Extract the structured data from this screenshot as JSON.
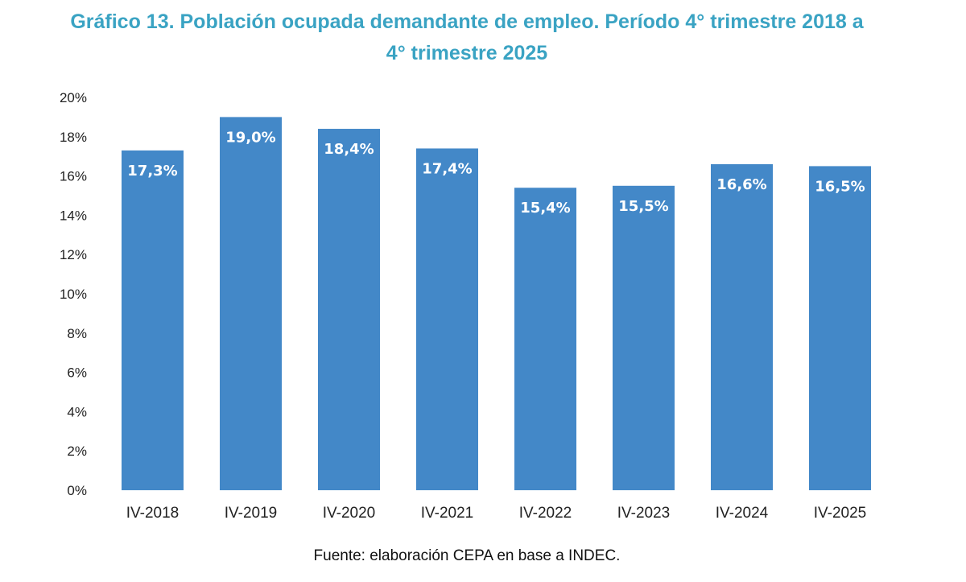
{
  "chart_data": {
    "type": "bar",
    "title": "Gráfico 13. Población ocupada demandante de empleo. Período 4° trimestre 2018 a 4° trimestre 2025",
    "title_lines": [
      "Gráfico 13. Población ocupada demandante de empleo. Período 4° trimestre 2018 a",
      "4° trimestre 2025"
    ],
    "categories": [
      "IV-2018",
      "IV-2019",
      "IV-2020",
      "IV-2021",
      "IV-2022",
      "IV-2023",
      "IV-2024",
      "IV-2025"
    ],
    "values": [
      17.3,
      19.0,
      18.4,
      17.4,
      15.4,
      15.5,
      16.6,
      16.5
    ],
    "data_labels": [
      "17,3%",
      "19,0%",
      "18,4%",
      "17,4%",
      "15,4%",
      "15,5%",
      "16,6%",
      "16,5%"
    ],
    "xlabel": "",
    "ylabel": "",
    "ylim": [
      0,
      20
    ],
    "yticks": [
      0,
      2,
      4,
      6,
      8,
      10,
      12,
      14,
      16,
      18,
      20
    ],
    "ytick_labels": [
      "0%",
      "2%",
      "4%",
      "6%",
      "8%",
      "10%",
      "12%",
      "14%",
      "16%",
      "18%",
      "20%"
    ],
    "grid": false,
    "legend": "none",
    "bar_color": "#4388c8",
    "title_color": "#3aa3c3",
    "source": "Fuente: elaboración CEPA en base a INDEC."
  }
}
